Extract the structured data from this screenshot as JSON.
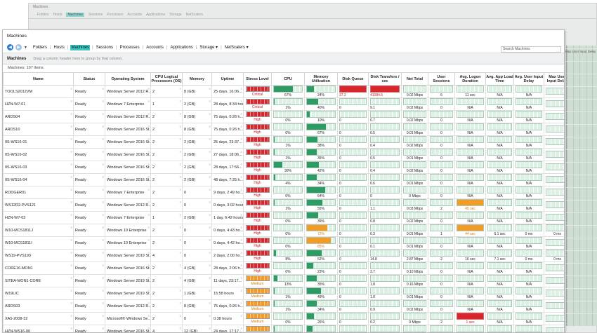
{
  "background_window": {
    "title": "Machines",
    "toolbar": [
      "Folders",
      "Hosts",
      "Machines",
      "Sessions",
      "Processes",
      "Accounts",
      "Applications",
      "Storage",
      "NetScalers"
    ],
    "extra_col": "Max User Input Delay"
  },
  "window": {
    "title": "Machines"
  },
  "toolbar": {
    "items": [
      "Folders",
      "Hosts",
      "Machines",
      "Sessions",
      "Processes",
      "Accounts",
      "Applications",
      "Storage",
      "NetScalers"
    ],
    "selected": "Machines",
    "storage_arrow": "▾",
    "netscalers_arrow": "▾"
  },
  "search": {
    "placeholder": "Search Machines"
  },
  "tab": {
    "label": "Machines",
    "hint": "Drag a column header here to group by that column."
  },
  "count": "Machines: 107 Items",
  "columns": {
    "name": "Name",
    "status": "Status",
    "os": "Operating System",
    "cpu_lp": "CPU Logical Processors (OS)",
    "memory": "Memory",
    "uptime": "Uptime",
    "stress": "Stress Level",
    "cpu": "CPU",
    "memutil": "Memory Utilization",
    "diskq": "Disk Queue",
    "disktr": "Disk Transfers / sec",
    "net": "Net Total",
    "sessions": "User Sessions",
    "logon": "Avg. Logon Duration",
    "appload": "Avg. App Load Time",
    "uid": "Avg. User Input Delay",
    "maxuid": "Max User Input Delay"
  },
  "colors": {
    "accent": "#3ec9c0",
    "critical": "#d9262c",
    "medium": "#f39b25",
    "spark": "#2c9b64"
  },
  "rows": [
    {
      "name": "TOOLS2012VM",
      "status": "Ready",
      "os": "Windows Server 2012 R...",
      "cpu": "2",
      "mem": "8 (GB)",
      "uptime": "25 days, 16:06...",
      "stress": "Critical",
      "sl": "c",
      "cpuv": "67%",
      "cpuf": 0.67,
      "memv": "24%",
      "memf": 0.24,
      "dq": "37.2",
      "dqred": true,
      "dt": "41084.6",
      "dtred": true,
      "net": "0.02 Mbps",
      "ses": "6",
      "logon": "11 sec",
      "logonred": false,
      "app": "N/A",
      "uid": "N/A",
      "maxuid": ""
    },
    {
      "name": "HZN-W7-01",
      "status": "Ready",
      "os": "Windows 7 Enterprise",
      "cpu": "1",
      "mem": "2 (GB)",
      "uptime": "28 days, 8:34 hours",
      "stress": "Critical",
      "sl": "c",
      "cpuv": "1%",
      "cpuf": 0.01,
      "memv": "40%",
      "memf": 0.4,
      "dq": "0",
      "dt": "9.1",
      "net": "0.02 Mbps",
      "ses": "0",
      "logon": "N/A",
      "app": "N/A",
      "uid": "N/A",
      "maxuid": ""
    },
    {
      "name": "ARDS04",
      "status": "Ready",
      "os": "Windows Server 2012 R...",
      "cpu": "2",
      "mem": "8 (GB)",
      "uptime": "75 days, 0:26 h...",
      "stress": "High",
      "sl": "h",
      "cpuv": "0%",
      "cpuf": 0.0,
      "memv": "10%",
      "memf": 0.1,
      "dq": "0",
      "dt": "0.7",
      "net": "0.02 Mbps",
      "ses": "0",
      "logon": "N/A",
      "app": "N/A",
      "uid": "N/A",
      "maxuid": ""
    },
    {
      "name": "ARDS10",
      "status": "Ready",
      "os": "Windows Server 2016 St...",
      "cpu": "2",
      "mem": "8 (GB)",
      "uptime": "75 days, 0:26 h...",
      "stress": "High",
      "sl": "h",
      "cpuv": "0%",
      "cpuf": 0.0,
      "memv": "67%",
      "memf": 0.67,
      "dq": "0",
      "dt": "0.5",
      "net": "0.01 Mbps",
      "ses": "0",
      "logon": "N/A",
      "app": "N/A",
      "uid": "N/A",
      "maxuid": ""
    },
    {
      "name": "IIS-WS16-01",
      "status": "Ready",
      "os": "Windows Server 2016 St...",
      "cpu": "2",
      "mem": "2 (GB)",
      "uptime": "25 days, 23:37...",
      "stress": "High",
      "sl": "h",
      "cpuv": "1%",
      "cpuf": 0.01,
      "memv": "38%",
      "memf": 0.38,
      "dq": "0",
      "dt": "0.4",
      "net": "0.02 Mbps",
      "ses": "0",
      "logon": "N/A",
      "app": "N/A",
      "uid": "N/A",
      "maxuid": ""
    },
    {
      "name": "IIS-WS16-02",
      "status": "Ready",
      "os": "Windows Server 2016 St...",
      "cpu": "2",
      "mem": "2 (GB)",
      "uptime": "27 days, 18:06...",
      "stress": "High",
      "sl": "h",
      "cpuv": "1%",
      "cpuf": 0.01,
      "memv": "35%",
      "memf": 0.35,
      "dq": "0",
      "dt": "0.5",
      "net": "0.01 Mbps",
      "ses": "0",
      "logon": "N/A",
      "app": "N/A",
      "uid": "N/A",
      "maxuid": ""
    },
    {
      "name": "IIS-WS16-03",
      "status": "Ready",
      "os": "Windows Server 2016 St...",
      "cpu": "2",
      "mem": "2 (GB)",
      "uptime": "28 days, 17:56...",
      "stress": "High",
      "sl": "h",
      "cpuv": "30%",
      "cpuf": 0.3,
      "memv": "42%",
      "memf": 0.42,
      "dq": "0",
      "dt": "0.4",
      "net": "0.02 Mbps",
      "ses": "0",
      "logon": "N/A",
      "app": "N/A",
      "uid": "N/A",
      "maxuid": ""
    },
    {
      "name": "IIS-WS16-04",
      "status": "Ready",
      "os": "Windows Server 2016 St...",
      "cpu": "2",
      "mem": "2 (GB)",
      "uptime": "48 days, 7:25 h...",
      "stress": "High",
      "sl": "h",
      "cpuv": "4%",
      "cpuf": 0.04,
      "memv": "34%",
      "memf": 0.34,
      "dq": "0",
      "dt": "0.6",
      "net": "0.01 Mbps",
      "ses": "0",
      "logon": "N/A",
      "app": "N/A",
      "uid": "N/A",
      "maxuid": ""
    },
    {
      "name": "RODGER01",
      "status": "Ready",
      "os": "Windows 7 Enterprise",
      "cpu": "2",
      "mem": "0",
      "uptime": "9 days, 2:49 ho...",
      "stress": "High",
      "sl": "h",
      "cpuv": "0%",
      "cpuf": 0.0,
      "memv": "64%",
      "memf": 0.64,
      "dq": "0",
      "dt": "0",
      "net": "0 Mbps",
      "ses": "0",
      "logon": "N/A",
      "app": "N/A",
      "uid": "N/A",
      "maxuid": ""
    },
    {
      "name": "WS12R2-PVS121",
      "status": "Ready",
      "os": "Windows Server 2012 R...",
      "cpu": "2",
      "mem": "0",
      "uptime": "0 days, 3:02 hours",
      "stress": "High",
      "sl": "h",
      "cpuv": "1%",
      "cpuf": 0.01,
      "memv": "55%",
      "memf": 0.55,
      "dq": "0",
      "dt": "1.1",
      "net": "0.03 Mbps",
      "ses": "2",
      "logon": "45 sec",
      "logonorange": true,
      "app": "N/A",
      "uid": "N/A",
      "maxuid": ""
    },
    {
      "name": "HZN-W7-03",
      "status": "Ready",
      "os": "Windows 7 Enterprise",
      "cpu": "1",
      "mem": "2 (GB)",
      "uptime": "1 day, 6:42 hours",
      "stress": "High",
      "sl": "h",
      "cpuv": "0%",
      "cpuf": 0.0,
      "memv": "39%",
      "memf": 0.39,
      "dq": "0",
      "dt": "0.8",
      "net": "0.02 Mbps",
      "ses": "0",
      "logon": "N/A",
      "app": "N/A",
      "uid": "N/A",
      "maxuid": ""
    },
    {
      "name": "W10-MCS1811J",
      "status": "Ready",
      "os": "Windows 10 Enterprise",
      "cpu": "2",
      "mem": "0",
      "uptime": "0 days, 4:43 ho...",
      "stress": "High",
      "sl": "h",
      "cpuv": "0%",
      "cpuf": 0.0,
      "memv": "72%",
      "memf": 0.72,
      "memorange": true,
      "dq": "0",
      "dt": "0.3",
      "net": "0.01 Mbps",
      "ses": "1",
      "logon": "44 sec",
      "logonorange": true,
      "app": "6.1 sec",
      "uid": "0 ms",
      "maxuid": "0 ms"
    },
    {
      "name": "W10-MCS1811I",
      "status": "Ready",
      "os": "Windows 10 Enterprise",
      "cpu": "2",
      "mem": "0",
      "uptime": "0 days, 4:42 ho...",
      "stress": "High",
      "sl": "h",
      "cpuv": "0%",
      "cpuf": 0.0,
      "memv": "85%",
      "memf": 0.85,
      "memorange": true,
      "dq": "0",
      "dt": "0.1",
      "net": "0.01 Mbps",
      "ses": "0",
      "logon": "N/A",
      "app": "N/A",
      "uid": "N/A",
      "maxuid": ""
    },
    {
      "name": "WS19-PVS193",
      "status": "Ready",
      "os": "Windows Server 2019 St...",
      "cpu": "4",
      "mem": "0",
      "uptime": "2 days, 2:00 ho...",
      "stress": "High",
      "sl": "h",
      "cpuv": "8%",
      "cpuf": 0.08,
      "memv": "52%",
      "memf": 0.52,
      "dq": "0",
      "dt": "14.8",
      "net": "2.87 Mbps",
      "ses": "2",
      "logon": "16 sec",
      "app": "7.1 sec",
      "uid": "0 ms",
      "maxuid": "0 ms"
    },
    {
      "name": "CORE16-MON1",
      "status": "Ready",
      "os": "Windows Server 2016 St...",
      "cpu": "2",
      "mem": "4 (GB)",
      "uptime": "28 days, 2:06 h...",
      "stress": "High",
      "sl": "h",
      "cpuv": "0%",
      "cpuf": 0.0,
      "memv": "23%",
      "memf": 0.23,
      "dq": "0",
      "dt": "3.7",
      "net": "0.10 Mbps",
      "ses": "0",
      "logon": "N/A",
      "app": "N/A",
      "uid": "N/A",
      "maxuid": ""
    },
    {
      "name": "SITEA-MON1-CORE",
      "status": "Ready",
      "os": "Windows Server 2019 St...",
      "cpu": "2",
      "mem": "4 (GB)",
      "uptime": "11 days, 23:17...",
      "stress": "Medium",
      "sl": "m",
      "cpuv": "13%",
      "cpuf": 0.13,
      "memv": "35%",
      "memf": 0.35,
      "dq": "0",
      "dt": "1.8",
      "net": "0.16 Mbps",
      "ses": "0",
      "logon": "N/A",
      "app": "N/A",
      "uid": "N/A",
      "maxuid": ""
    },
    {
      "name": "W19LIC",
      "status": "Ready",
      "os": "Windows Server 2019 St...",
      "cpu": "2",
      "mem": "1 (GB)",
      "uptime": "15:58 hours",
      "stress": "Medium",
      "sl": "m",
      "cpuv": "1%",
      "cpuf": 0.01,
      "memv": "49%",
      "memf": 0.49,
      "dq": "0",
      "dt": "1.0",
      "net": "0.01 Mbps",
      "ses": "0",
      "logon": "N/A",
      "app": "N/A",
      "uid": "N/A",
      "maxuid": ""
    },
    {
      "name": "ARDS03",
      "status": "Ready",
      "os": "Windows Server 2012 R...",
      "cpu": "2",
      "mem": "8 (GB)",
      "uptime": "75 days, 0:26 h...",
      "stress": "Medium",
      "sl": "m",
      "cpuv": "1%",
      "cpuf": 0.01,
      "memv": "34%",
      "memf": 0.34,
      "dq": "0",
      "dt": "0.9",
      "net": "0.02 Mbps",
      "ses": "0",
      "logon": "N/A",
      "app": "N/A",
      "uid": "N/A",
      "maxuid": ""
    },
    {
      "name": "XA5-2008-32",
      "status": "Ready",
      "os": "Microsoft® Windows Se...",
      "cpu": "2",
      "mem": "0",
      "uptime": "0.38 hours",
      "stress": "Medium",
      "sl": "m",
      "cpuv": "0%",
      "cpuf": 0.0,
      "memv": "26%",
      "memf": 0.26,
      "dq": "0",
      "dt": "0.2",
      "net": "0 Mbps",
      "ses": "2",
      "logon": "1 sec",
      "logonred": true,
      "app": "N/A",
      "uid": "N/A",
      "maxuid": ""
    },
    {
      "name": "HZN-WS16-00",
      "status": "Ready",
      "os": "Windows Server 2016 St...",
      "cpu": "4",
      "mem": "12 (GB)",
      "uptime": "24 days, 17:17...",
      "stress": "Medium",
      "sl": "m",
      "cpuv": "1%",
      "cpuf": 0.01,
      "memv": "20%",
      "memf": 0.2,
      "dq": "0",
      "dt": "1.2",
      "net": "0.02 Mbps",
      "ses": "0",
      "logon": "N/A",
      "app": "N/A",
      "uid": "N/A",
      "maxuid": ""
    }
  ]
}
